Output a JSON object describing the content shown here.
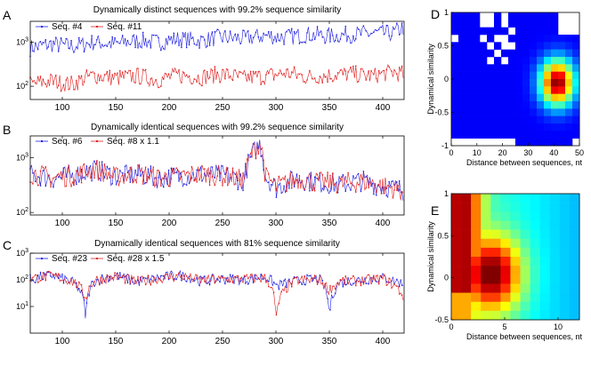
{
  "figure": {
    "panel_letters": [
      "A",
      "B",
      "C",
      "D",
      "E"
    ]
  },
  "chart_data": [
    {
      "panel": "A",
      "type": "line",
      "title": "Dynamically distinct sequences with 99.2% sequence similarity",
      "xlabel": "",
      "ylabel": "",
      "xlim": [
        70,
        420
      ],
      "xticks": [
        100,
        150,
        200,
        250,
        300,
        350,
        400
      ],
      "yscale": "log",
      "ylim": [
        50,
        3000
      ],
      "yticks": [
        "10^2",
        "10^3"
      ],
      "legend": "top-left",
      "series": [
        {
          "name": "Seq. #4",
          "color": "#1f1fe0",
          "marker": "dot",
          "x": [
            70,
            90,
            110,
            130,
            150,
            170,
            190,
            210,
            230,
            250,
            270,
            290,
            310,
            330,
            350,
            370,
            390,
            410,
            420
          ],
          "y": [
            750,
            900,
            800,
            1000,
            900,
            1100,
            1000,
            1200,
            1100,
            1300,
            1200,
            1400,
            1300,
            1500,
            1400,
            1500,
            1600,
            1600,
            2200
          ]
        },
        {
          "name": "Seq. #11",
          "color": "#e01f1f",
          "marker": "dot",
          "x": [
            70,
            90,
            110,
            130,
            150,
            170,
            190,
            210,
            230,
            250,
            270,
            290,
            310,
            330,
            350,
            370,
            390,
            410,
            420
          ],
          "y": [
            110,
            130,
            110,
            180,
            150,
            170,
            140,
            180,
            160,
            190,
            150,
            170,
            200,
            160,
            180,
            190,
            170,
            210,
            180
          ]
        }
      ]
    },
    {
      "panel": "B",
      "type": "line",
      "title": "Dynamically identical sequences with 99.2% sequence similarity",
      "xlabel": "",
      "ylabel": "",
      "xlim": [
        70,
        420
      ],
      "xticks": [
        100,
        150,
        200,
        250,
        300,
        350,
        400
      ],
      "yscale": "log",
      "ylim": [
        90,
        2500
      ],
      "yticks": [
        "10^2",
        "10^3"
      ],
      "legend": "top-left",
      "series": [
        {
          "name": "Seq. #6",
          "color": "#1f1fe0",
          "marker": "dot",
          "x": [
            70,
            90,
            110,
            130,
            150,
            170,
            190,
            210,
            230,
            250,
            270,
            285,
            290,
            300,
            320,
            340,
            360,
            380,
            400,
            420
          ],
          "y": [
            500,
            420,
            480,
            600,
            450,
            500,
            420,
            460,
            500,
            480,
            380,
            1800,
            450,
            280,
            420,
            350,
            320,
            380,
            300,
            250
          ]
        },
        {
          "name": "Seq. #8 x 1.1",
          "color": "#e01f1f",
          "marker": "dot",
          "x": [
            70,
            90,
            110,
            130,
            150,
            170,
            190,
            210,
            230,
            250,
            270,
            285,
            290,
            300,
            320,
            340,
            360,
            380,
            400,
            420
          ],
          "y": [
            520,
            430,
            470,
            620,
            440,
            510,
            430,
            450,
            510,
            470,
            390,
            1900,
            440,
            290,
            410,
            360,
            330,
            370,
            310,
            240
          ]
        }
      ]
    },
    {
      "panel": "C",
      "type": "line",
      "title": "Dynamically identical sequences with 81% sequence similarity",
      "xlabel": "",
      "ylabel": "",
      "xlim": [
        70,
        420
      ],
      "xticks": [
        100,
        150,
        200,
        250,
        300,
        350,
        400
      ],
      "yscale": "log",
      "ylim": [
        1,
        1000
      ],
      "yticks": [
        "10^1",
        "10^2",
        "10^3"
      ],
      "legend": "top-left",
      "series": [
        {
          "name": "Seq. #23",
          "color": "#1f1fe0",
          "marker": "dot",
          "x": [
            70,
            90,
            110,
            122,
            130,
            150,
            170,
            190,
            210,
            230,
            250,
            270,
            290,
            300,
            320,
            340,
            350,
            360,
            380,
            400,
            420
          ],
          "y": [
            100,
            150,
            80,
            2,
            90,
            140,
            80,
            120,
            150,
            90,
            110,
            100,
            130,
            60,
            90,
            110,
            3,
            80,
            100,
            120,
            70
          ]
        },
        {
          "name": "Seq. #28 x 1.5",
          "color": "#e01f1f",
          "marker": "dot",
          "x": [
            70,
            90,
            110,
            122,
            130,
            150,
            170,
            190,
            210,
            230,
            250,
            270,
            290,
            300,
            320,
            340,
            350,
            360,
            380,
            400,
            420
          ],
          "y": [
            110,
            140,
            85,
            20,
            95,
            130,
            85,
            110,
            140,
            95,
            105,
            110,
            120,
            1.5,
            95,
            100,
            40,
            85,
            95,
            110,
            20
          ]
        }
      ]
    },
    {
      "panel": "D",
      "type": "heatmap",
      "title": "",
      "xlabel": "Distance between sequences, nt",
      "ylabel": "Dynamical similarity",
      "xlim": [
        0,
        50
      ],
      "ylim": [
        -1,
        1
      ],
      "xticks": [
        "0",
        "10",
        "20",
        "30",
        "40",
        "50"
      ],
      "yticks": [
        "-1",
        "-0.5",
        "0",
        "0.5",
        "1"
      ],
      "colormap": "jet",
      "peak": {
        "x": 40,
        "y": 0
      }
    },
    {
      "panel": "E",
      "type": "heatmap",
      "title": "",
      "xlabel": "Distance between sequences, nt",
      "ylabel": "Dynamical similarity",
      "xlim": [
        0,
        12
      ],
      "ylim": [
        -0.5,
        1
      ],
      "xticks": [
        "0",
        "5",
        "10"
      ],
      "yticks": [
        "-0.5",
        "0",
        "0.5",
        "1"
      ],
      "colormap": "jet",
      "peak": {
        "x": 3.5,
        "y": 0.1
      }
    }
  ]
}
